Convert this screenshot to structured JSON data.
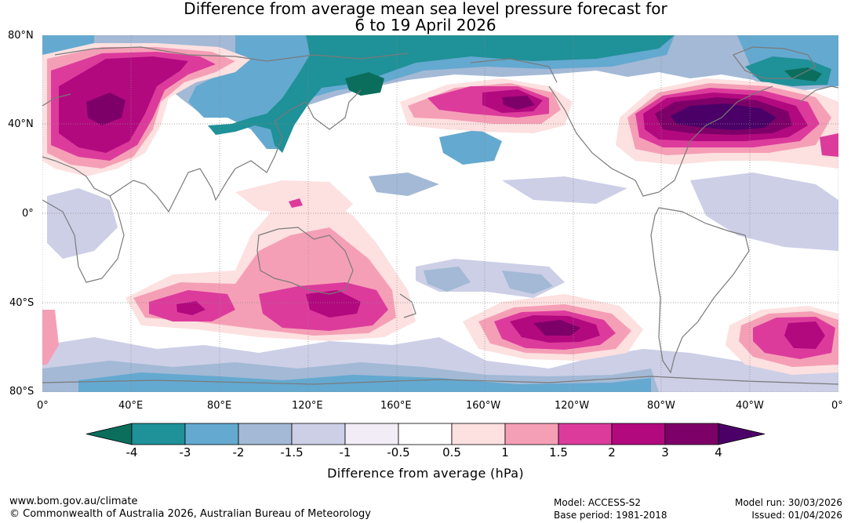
{
  "title": {
    "line1": "Difference from average mean sea level pressure forecast for",
    "line2": "6 to 19 April 2026"
  },
  "map": {
    "lat_labels": [
      "80°N",
      "40°N",
      "0°",
      "40°S",
      "80°S"
    ],
    "lon_labels": [
      "0°",
      "40°E",
      "80°E",
      "120°E",
      "160°E",
      "160°W",
      "120°W",
      "80°W",
      "40°W",
      "0°"
    ]
  },
  "colorbar": {
    "ticks": [
      "-4",
      "-3",
      "-2",
      "-1.5",
      "-1",
      "-0.5",
      "0.5",
      "1",
      "1.5",
      "2",
      "3",
      "4"
    ],
    "colors": [
      "#0b6e5d",
      "#1f9198",
      "#64a9d0",
      "#a3b9d6",
      "#cccfe6",
      "#f1ecf5",
      "#ffffff",
      "#fde0e0",
      "#f59fb6",
      "#dc3b9c",
      "#b3097f",
      "#7d0068",
      "#4b0068"
    ],
    "label": "Difference from average (hPa)"
  },
  "footer": {
    "url": "www.bom.gov.au/climate",
    "copyright": "© Commonwealth of Australia 2026, Australian Bureau of Meteorology",
    "model": "Model: ACCESS-S2",
    "base_period": "Base period: 1981-2018",
    "model_run": "Model run: 30/03/2026",
    "issued": "Issued: 01/04/2026"
  }
}
